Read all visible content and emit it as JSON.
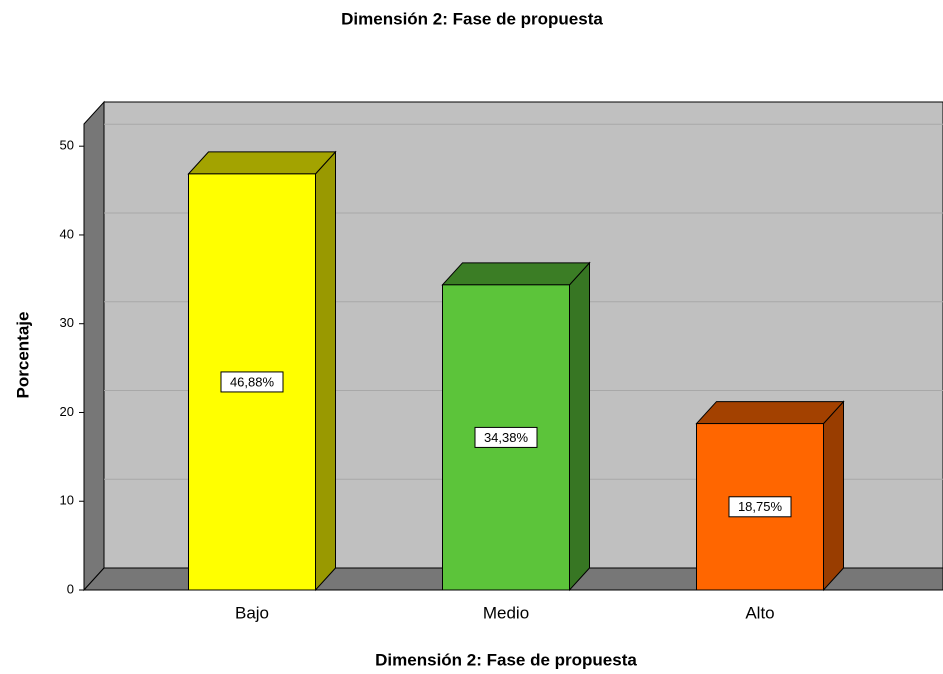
{
  "chart_data": {
    "type": "bar3d",
    "title": "Dimensión 2: Fase de propuesta",
    "x_label": "Dimensión 2: Fase de propuesta",
    "y_label": "Porcentaje",
    "categories": [
      "Bajo",
      "Medio",
      "Alto"
    ],
    "values": [
      46.88,
      34.38,
      18.75
    ],
    "value_labels": [
      "46,88%",
      "34,38%",
      "18,75%"
    ],
    "colors": [
      "#ffff00",
      "#5cc43a",
      "#ff6600"
    ],
    "ylim": [
      0,
      52.5
    ],
    "yticks": [
      0,
      10,
      20,
      30,
      40,
      50
    ],
    "grid": true
  }
}
